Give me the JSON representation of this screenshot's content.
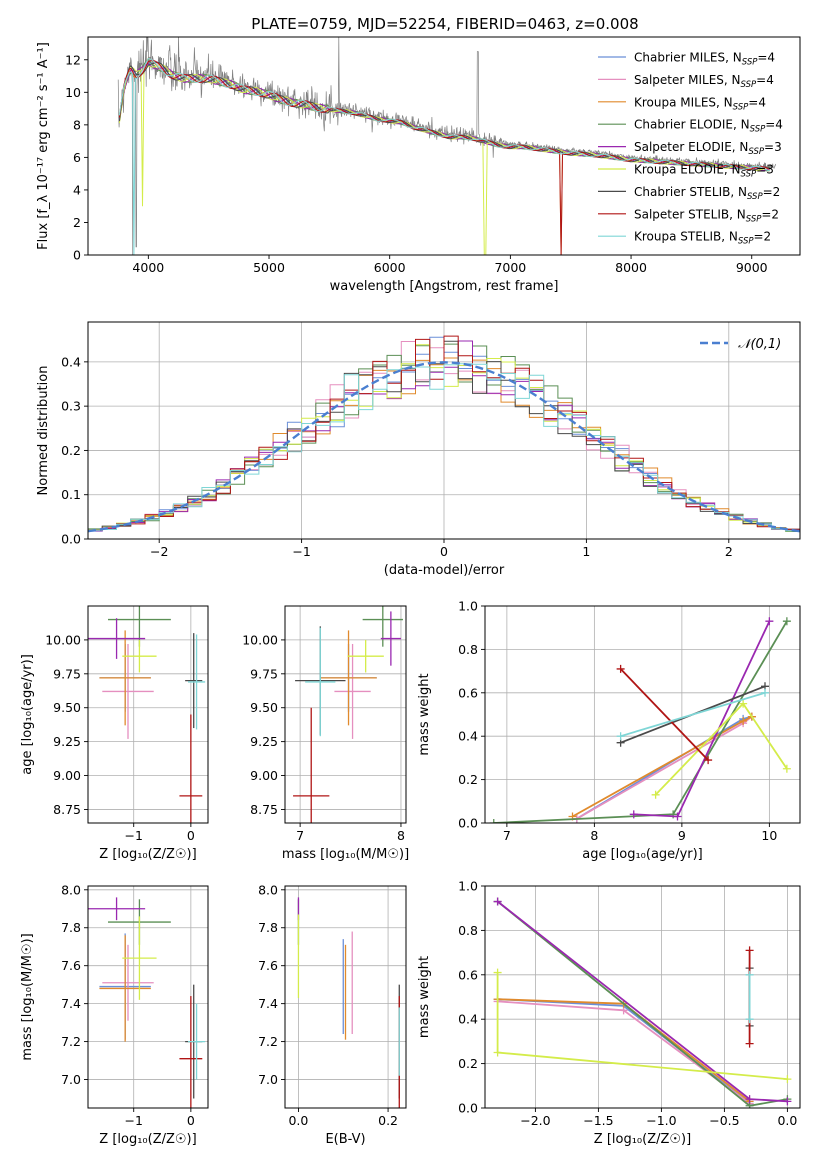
{
  "figure": {
    "title": "PLATE=0759, MJD=52254, FIBERID=0463, z=0.008"
  },
  "palette": [
    "#6a8fd8",
    "#e58fbf",
    "#e08a2c",
    "#5b8f55",
    "#9a28b0",
    "#d4ec4a",
    "#4a4a4a",
    "#b01515",
    "#7fd6d6"
  ],
  "chart_data": [
    {
      "type": "line",
      "id": "spectrum",
      "xlabel": "wavelength [Angstrom, rest frame]",
      "ylabel": "Flux [f_λ 10⁻¹⁷ erg cm⁻² s⁻¹ A⁻¹]",
      "xlim": [
        3500,
        9400
      ],
      "ylim": [
        0,
        13.4
      ],
      "xticks": [
        4000,
        5000,
        6000,
        7000,
        8000,
        9000
      ],
      "yticks": [
        0,
        2,
        4,
        6,
        8,
        10,
        12
      ],
      "grid": false,
      "legend_position": "top-right",
      "data_color": "#808080",
      "data": {
        "x": [
          3750,
          3800,
          3850,
          3900,
          3950,
          4000,
          4100,
          4200,
          4300,
          4400,
          4500,
          4600,
          4700,
          4800,
          4900,
          5000,
          5100,
          5200,
          5300,
          5400,
          5500,
          5600,
          5700,
          5800,
          5900,
          6000,
          6100,
          6200,
          6300,
          6400,
          6500,
          6600,
          6700,
          6800,
          6900,
          7000,
          7100,
          7200,
          7300,
          7400,
          7500,
          7600,
          7700,
          7800,
          7900,
          8000,
          8200,
          8400,
          8600,
          8800,
          9000,
          9200
        ],
        "y": [
          8.0,
          10.5,
          11.6,
          11.2,
          11.5,
          12.0,
          11.7,
          11.2,
          11.0,
          11.0,
          11.0,
          10.8,
          10.6,
          10.3,
          10.2,
          10.0,
          9.7,
          9.5,
          9.4,
          9.2,
          9.1,
          9.0,
          8.9,
          8.7,
          8.5,
          8.4,
          8.3,
          8.0,
          7.8,
          7.6,
          7.4,
          7.4,
          7.3,
          7.1,
          6.9,
          6.8,
          6.8,
          6.7,
          6.6,
          6.5,
          6.4,
          6.35,
          6.3,
          6.2,
          6.1,
          6.0,
          5.9,
          5.8,
          5.7,
          5.6,
          5.5,
          5.4
        ]
      },
      "series": [
        {
          "name": "Chabrier MILES",
          "nssp": "4"
        },
        {
          "name": "Salpeter MILES",
          "nssp": "4"
        },
        {
          "name": "Kroupa MILES",
          "nssp": "4"
        },
        {
          "name": "Chabrier ELODIE",
          "nssp": "4"
        },
        {
          "name": "Salpeter ELODIE",
          "nssp": "3"
        },
        {
          "name": "Kroupa ELODIE",
          "nssp": "3"
        },
        {
          "name": "Chabrier STELIB",
          "nssp": "2"
        },
        {
          "name": "Salpeter STELIB",
          "nssp": "2"
        },
        {
          "name": "Kroupa STELIB",
          "nssp": "2"
        }
      ]
    },
    {
      "type": "histogram",
      "id": "residuals",
      "xlabel": "(data-model)/error",
      "ylabel": "Normed distribution",
      "xlim": [
        -2.5,
        2.5
      ],
      "ylim": [
        0,
        0.49
      ],
      "xticks": [
        -2,
        -1,
        0,
        1,
        2
      ],
      "yticks": [
        0.0,
        0.1,
        0.2,
        0.3,
        0.4
      ],
      "grid": true,
      "legend_position": "top-right",
      "bin_width": 0.1,
      "legend": [
        {
          "label": "𝒩(0,1)",
          "style": "dashed",
          "color": "#4a7fd0"
        }
      ]
    },
    {
      "type": "scatter",
      "id": "age-vs-Z",
      "xlabel": "Z [log₁₀(Z/Z☉)]",
      "ylabel": "age  [log₁₀(age/yr)]",
      "xlim": [
        -1.8,
        0.3
      ],
      "ylim": [
        8.65,
        10.25
      ],
      "xticks": [
        -1,
        0
      ],
      "yticks": [
        8.75,
        9.0,
        9.25,
        9.5,
        9.75,
        10.0
      ],
      "grid": true,
      "points": [
        {
          "x": -1.15,
          "y": 9.72,
          "xerr": 0.45,
          "yerr": 0.25
        },
        {
          "x": -1.1,
          "y": 9.62,
          "xerr": 0.45,
          "yerr": 0.35
        },
        {
          "x": -1.15,
          "y": 9.72,
          "xerr": 0.45,
          "yerr": 0.35
        },
        {
          "x": -0.9,
          "y": 10.15,
          "xerr": 0.55,
          "yerr": 0.2
        },
        {
          "x": -1.3,
          "y": 10.01,
          "xerr": 0.5,
          "yerr": 0.15
        },
        {
          "x": -0.9,
          "y": 9.88,
          "xerr": 0.3,
          "yerr": 0.12
        },
        {
          "x": 0.05,
          "y": 9.7,
          "xerr": 0.15,
          "yerr": 0.35
        },
        {
          "x": 0.0,
          "y": 8.85,
          "xerr": 0.2,
          "yerr": 0.6
        },
        {
          "x": 0.1,
          "y": 9.69,
          "xerr": 0.15,
          "yerr": 0.35
        }
      ]
    },
    {
      "type": "scatter",
      "id": "age-vs-mass",
      "xlabel": "mass [log₁₀(M/M☉)]",
      "ylabel": "",
      "xlim": [
        6.85,
        8.05
      ],
      "ylim": [
        8.65,
        10.25
      ],
      "xticks": [
        7,
        8
      ],
      "yticks": [
        8.75,
        9.0,
        9.25,
        9.5,
        9.75,
        10.0
      ],
      "grid": true,
      "points": [
        {
          "x": 7.48,
          "y": 9.72,
          "xerr": 0.28,
          "yerr": 0.25
        },
        {
          "x": 7.52,
          "y": 9.62,
          "xerr": 0.18,
          "yerr": 0.35
        },
        {
          "x": 7.48,
          "y": 9.72,
          "xerr": 0.28,
          "yerr": 0.35
        },
        {
          "x": 7.82,
          "y": 10.15,
          "xerr": 0.2,
          "yerr": 0.2
        },
        {
          "x": 7.9,
          "y": 10.01,
          "xerr": 0.1,
          "yerr": 0.2
        },
        {
          "x": 7.65,
          "y": 9.88,
          "xerr": 0.18,
          "yerr": 0.12
        },
        {
          "x": 7.2,
          "y": 9.7,
          "xerr": 0.25,
          "yerr": 0.4
        },
        {
          "x": 7.11,
          "y": 8.85,
          "xerr": 0.18,
          "yerr": 0.65
        },
        {
          "x": 7.2,
          "y": 9.69,
          "xerr": 0.15,
          "yerr": 0.4
        }
      ]
    },
    {
      "type": "line",
      "id": "massweight-vs-age",
      "xlabel": "age  [log₁₀(age/yr)]",
      "ylabel": "mass weight",
      "xlim": [
        6.75,
        10.35
      ],
      "ylim": [
        0,
        1.0
      ],
      "xticks": [
        7,
        8,
        9,
        10
      ],
      "yticks": [
        0.0,
        0.2,
        0.4,
        0.6,
        0.8,
        1.0
      ],
      "grid": true,
      "series": [
        {
          "x": [
            7.8,
            9.7,
            9.8
          ],
          "y": [
            0.02,
            0.48,
            0.49
          ]
        },
        {
          "x": [
            7.8,
            9.7,
            9.8
          ],
          "y": [
            0.02,
            0.46,
            0.49
          ]
        },
        {
          "x": [
            7.75,
            9.7,
            9.8
          ],
          "y": [
            0.03,
            0.47,
            0.49
          ]
        },
        {
          "x": [
            6.85,
            8.9,
            10.2
          ],
          "y": [
            0.0,
            0.04,
            0.93
          ]
        },
        {
          "x": [
            8.45,
            8.95,
            10.0
          ],
          "y": [
            0.04,
            0.03,
            0.93
          ]
        },
        {
          "x": [
            8.7,
            9.7,
            10.2
          ],
          "y": [
            0.13,
            0.55,
            0.25
          ]
        },
        {
          "x": [
            8.3,
            9.95
          ],
          "y": [
            0.37,
            0.63
          ]
        },
        {
          "x": [
            8.3,
            9.3
          ],
          "y": [
            0.71,
            0.29
          ]
        },
        {
          "x": [
            8.3,
            9.95
          ],
          "y": [
            0.4,
            0.6
          ]
        }
      ]
    },
    {
      "type": "scatter",
      "id": "mass-vs-Z",
      "xlabel": "Z [log₁₀(Z/Z☉)]",
      "ylabel": "mass [log₁₀(M/M☉)]",
      "xlim": [
        -1.8,
        0.3
      ],
      "ylim": [
        6.85,
        8.02
      ],
      "xticks": [
        -1,
        0
      ],
      "yticks": [
        7.0,
        7.2,
        7.4,
        7.6,
        7.8,
        8.0
      ],
      "grid": true,
      "points": [
        {
          "x": -1.15,
          "y": 7.49,
          "xerr": 0.45,
          "yerr": 0.28
        },
        {
          "x": -1.1,
          "y": 7.51,
          "xerr": 0.45,
          "yerr": 0.2
        },
        {
          "x": -1.15,
          "y": 7.48,
          "xerr": 0.45,
          "yerr": 0.28
        },
        {
          "x": -0.9,
          "y": 7.83,
          "xerr": 0.55,
          "yerr": 0.12
        },
        {
          "x": -1.3,
          "y": 7.9,
          "xerr": 0.5,
          "yerr": 0.06
        },
        {
          "x": -0.9,
          "y": 7.64,
          "xerr": 0.3,
          "yerr": 0.22
        },
        {
          "x": 0.05,
          "y": 7.2,
          "xerr": 0.15,
          "yerr": 0.3
        },
        {
          "x": 0.0,
          "y": 7.11,
          "xerr": 0.2,
          "yerr": 0.33
        },
        {
          "x": 0.1,
          "y": 7.2,
          "xerr": 0.15,
          "yerr": 0.2
        }
      ]
    },
    {
      "type": "scatter",
      "id": "mass-vs-ebv",
      "xlabel": "E(B-V)",
      "ylabel": "",
      "xlim": [
        -0.03,
        0.24
      ],
      "ylim": [
        6.85,
        8.02
      ],
      "xticks": [
        0.0,
        0.2
      ],
      "yticks": [
        7.0,
        7.2,
        7.4,
        7.6,
        7.8,
        8.0
      ],
      "grid": true,
      "points": [
        {
          "x": 0.1,
          "y": 7.49,
          "yerr": 0.25
        },
        {
          "x": 0.12,
          "y": 7.51,
          "yerr": 0.27
        },
        {
          "x": 0.105,
          "y": 7.46,
          "yerr": 0.25
        },
        {
          "x": 0.0,
          "y": 7.83,
          "yerr": 0.12
        },
        {
          "x": 0.0,
          "y": 7.9,
          "yerr": 0.06
        },
        {
          "x": 0.0,
          "y": 7.65,
          "yerr": 0.22
        },
        {
          "x": 0.225,
          "y": 7.2,
          "yerr": 0.3
        },
        {
          "x": 0.225,
          "y": 7.11,
          "yerr": 0.33
        },
        {
          "x": 0.225,
          "y": 7.2,
          "yerr": 0.18
        }
      ]
    },
    {
      "type": "line",
      "id": "massweight-vs-Z",
      "xlabel": "Z [log₁₀(Z/Z☉)]",
      "ylabel": "mass weight",
      "xlim": [
        -2.4,
        0.1
      ],
      "ylim": [
        0,
        1.0
      ],
      "xticks": [
        -2.0,
        -1.5,
        -1.0,
        -0.5,
        0.0
      ],
      "yticks": [
        0.0,
        0.2,
        0.4,
        0.6,
        0.8,
        1.0
      ],
      "grid": true,
      "series": [
        {
          "x": [
            -2.3,
            -1.3,
            -0.3
          ],
          "y": [
            0.49,
            0.46,
            0.02
          ]
        },
        {
          "x": [
            -2.3,
            -1.3,
            -0.3
          ],
          "y": [
            0.48,
            0.44,
            0.02
          ]
        },
        {
          "x": [
            -2.3,
            -1.3,
            -0.3
          ],
          "y": [
            0.49,
            0.47,
            0.03
          ]
        },
        {
          "x": [
            -2.3,
            -0.3,
            0.0
          ],
          "y": [
            0.93,
            0.01,
            0.04
          ]
        },
        {
          "x": [
            -2.3,
            -0.3,
            0.0
          ],
          "y": [
            0.93,
            0.04,
            0.03
          ]
        },
        {
          "x": [
            -2.3,
            -2.3,
            0.0
          ],
          "y": [
            0.61,
            0.25,
            0.13
          ]
        },
        {
          "x": [
            -0.3,
            -0.3
          ],
          "y": [
            0.37,
            0.63
          ]
        },
        {
          "x": [
            -0.3,
            -0.3
          ],
          "y": [
            0.29,
            0.71
          ]
        },
        {
          "x": [
            -0.3,
            -0.3
          ],
          "y": [
            0.4,
            0.6
          ]
        }
      ]
    }
  ]
}
